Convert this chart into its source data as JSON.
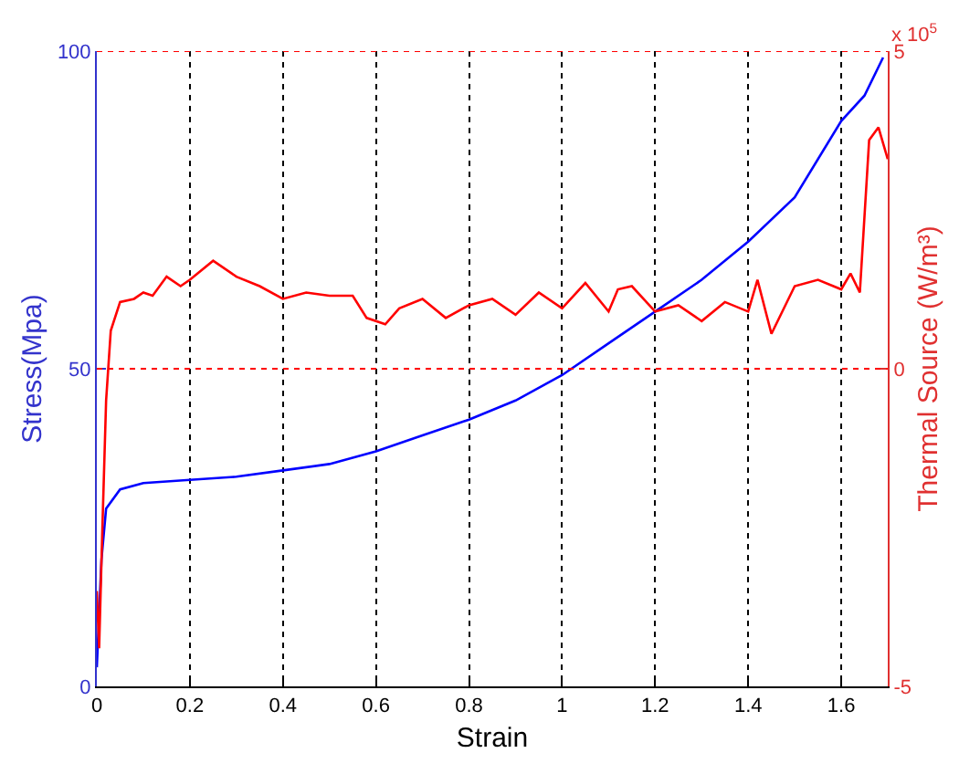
{
  "chart_data": {
    "type": "line",
    "xlabel": "Strain",
    "ylabel": "Stress(Mpa)",
    "y2label": "Thermal Source (W/m³)",
    "annotations": [
      "x 10$^{5}$"
    ],
    "xlim": [
      0,
      1.7
    ],
    "xticks": [
      0,
      0.2,
      0.4,
      0.6,
      0.8,
      1,
      1.2,
      1.4,
      1.6
    ],
    "ylim": [
      0,
      100
    ],
    "yticks": [
      0,
      50,
      100
    ],
    "y2lim": [
      -5,
      5
    ],
    "y2ticks": [
      -5,
      0,
      5
    ],
    "grid": "x",
    "ref_lines": [
      {
        "axis": "y2",
        "value": 0,
        "color": "#ff0000",
        "line_style": "dotted"
      },
      {
        "axis": "y2",
        "value": 5,
        "color": "#ff0000",
        "line_style": "dotted"
      }
    ],
    "line_style": "solid",
    "marker": "none",
    "series": [
      {
        "color": "#0000ff",
        "x": [
          0,
          0.01,
          0.02,
          0.05,
          0.1,
          0.2,
          0.3,
          0.4,
          0.5,
          0.6,
          0.7,
          0.8,
          0.9,
          1.0,
          1.1,
          1.2,
          1.3,
          1.4,
          1.5,
          1.6,
          1.65,
          1.69
        ],
        "values": [
          3,
          20,
          28,
          31,
          32,
          32.5,
          33,
          34,
          35,
          37,
          39.5,
          42,
          45,
          49,
          54,
          59,
          64,
          70,
          77,
          89,
          93,
          99
        ]
      },
      {
        "color": "#ff0000",
        "axis": "y2",
        "x": [
          0,
          0.005,
          0.012,
          0.02,
          0.03,
          0.05,
          0.08,
          0.1,
          0.12,
          0.15,
          0.18,
          0.2,
          0.25,
          0.3,
          0.35,
          0.4,
          0.45,
          0.5,
          0.55,
          0.58,
          0.62,
          0.65,
          0.7,
          0.75,
          0.8,
          0.85,
          0.9,
          0.95,
          1.0,
          1.05,
          1.1,
          1.12,
          1.15,
          1.2,
          1.25,
          1.3,
          1.35,
          1.4,
          1.42,
          1.45,
          1.5,
          1.55,
          1.6,
          1.62,
          1.64,
          1.66,
          1.68,
          1.7
        ],
        "values": [
          -3.5,
          -4.4,
          -2.5,
          -0.5,
          0.6,
          1.05,
          1.1,
          1.2,
          1.15,
          1.45,
          1.3,
          1.4,
          1.7,
          1.45,
          1.3,
          1.1,
          1.2,
          1.15,
          1.15,
          0.8,
          0.7,
          0.95,
          1.1,
          0.8,
          1.0,
          1.1,
          0.85,
          1.2,
          0.95,
          1.35,
          0.9,
          1.25,
          1.3,
          0.9,
          1.0,
          0.75,
          1.05,
          0.9,
          1.4,
          0.55,
          1.3,
          1.4,
          1.25,
          1.5,
          1.2,
          3.6,
          3.8,
          3.3
        ]
      }
    ]
  }
}
